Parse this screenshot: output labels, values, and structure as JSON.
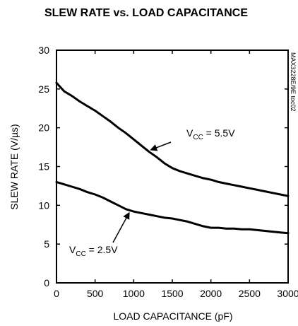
{
  "chart_data": {
    "type": "line",
    "title": "SLEW RATE vs. LOAD CAPACITANCE",
    "xlabel": "LOAD CAPACITANCE (pF)",
    "ylabel": "SLEW RATE (V/µs)",
    "xlim": [
      0,
      3000
    ],
    "ylim": [
      0,
      30
    ],
    "x_ticks": [
      "0",
      "500",
      "1000",
      "1500",
      "2000",
      "2500",
      "3000"
    ],
    "y_ticks": [
      "0",
      "5",
      "10",
      "15",
      "20",
      "25",
      "30"
    ],
    "grid": false,
    "side_label": "MAX3228E/9E toc02",
    "series": [
      {
        "name": "VCC = 5.5V",
        "x": [
          0,
          100,
          200,
          300,
          400,
          500,
          600,
          700,
          800,
          900,
          1000,
          1100,
          1200,
          1300,
          1400,
          1500,
          1600,
          1700,
          1800,
          1900,
          2000,
          2100,
          2200,
          2300,
          2400,
          2500,
          2600,
          2700,
          2800,
          2900,
          3000
        ],
        "values": [
          25.8,
          24.7,
          24.1,
          23.4,
          22.8,
          22.2,
          21.5,
          20.8,
          20.0,
          19.3,
          18.5,
          17.7,
          16.9,
          16.2,
          15.4,
          14.8,
          14.4,
          14.1,
          13.8,
          13.5,
          13.3,
          13.0,
          12.8,
          12.6,
          12.4,
          12.2,
          12.0,
          11.8,
          11.6,
          11.4,
          11.2
        ]
      },
      {
        "name": "VCC = 2.5V",
        "x": [
          0,
          100,
          200,
          300,
          400,
          500,
          600,
          700,
          800,
          900,
          1000,
          1100,
          1200,
          1300,
          1400,
          1500,
          1600,
          1700,
          1800,
          1900,
          2000,
          2100,
          2200,
          2300,
          2400,
          2500,
          2600,
          2700,
          2800,
          2900,
          3000
        ],
        "values": [
          13.0,
          12.7,
          12.4,
          12.1,
          11.7,
          11.4,
          11.0,
          10.5,
          10.0,
          9.5,
          9.2,
          9.0,
          8.8,
          8.6,
          8.4,
          8.3,
          8.1,
          7.9,
          7.6,
          7.3,
          7.1,
          7.1,
          7.0,
          7.0,
          6.9,
          6.9,
          6.8,
          6.7,
          6.6,
          6.5,
          6.4
        ]
      }
    ],
    "annotations": [
      {
        "main": "V",
        "sub": "CC",
        "rest": " = 5.5V",
        "series": 0,
        "x_at": 1200
      },
      {
        "main": "V",
        "sub": "CC",
        "rest": " = 2.5V",
        "series": 1,
        "x_at": 920
      }
    ]
  }
}
